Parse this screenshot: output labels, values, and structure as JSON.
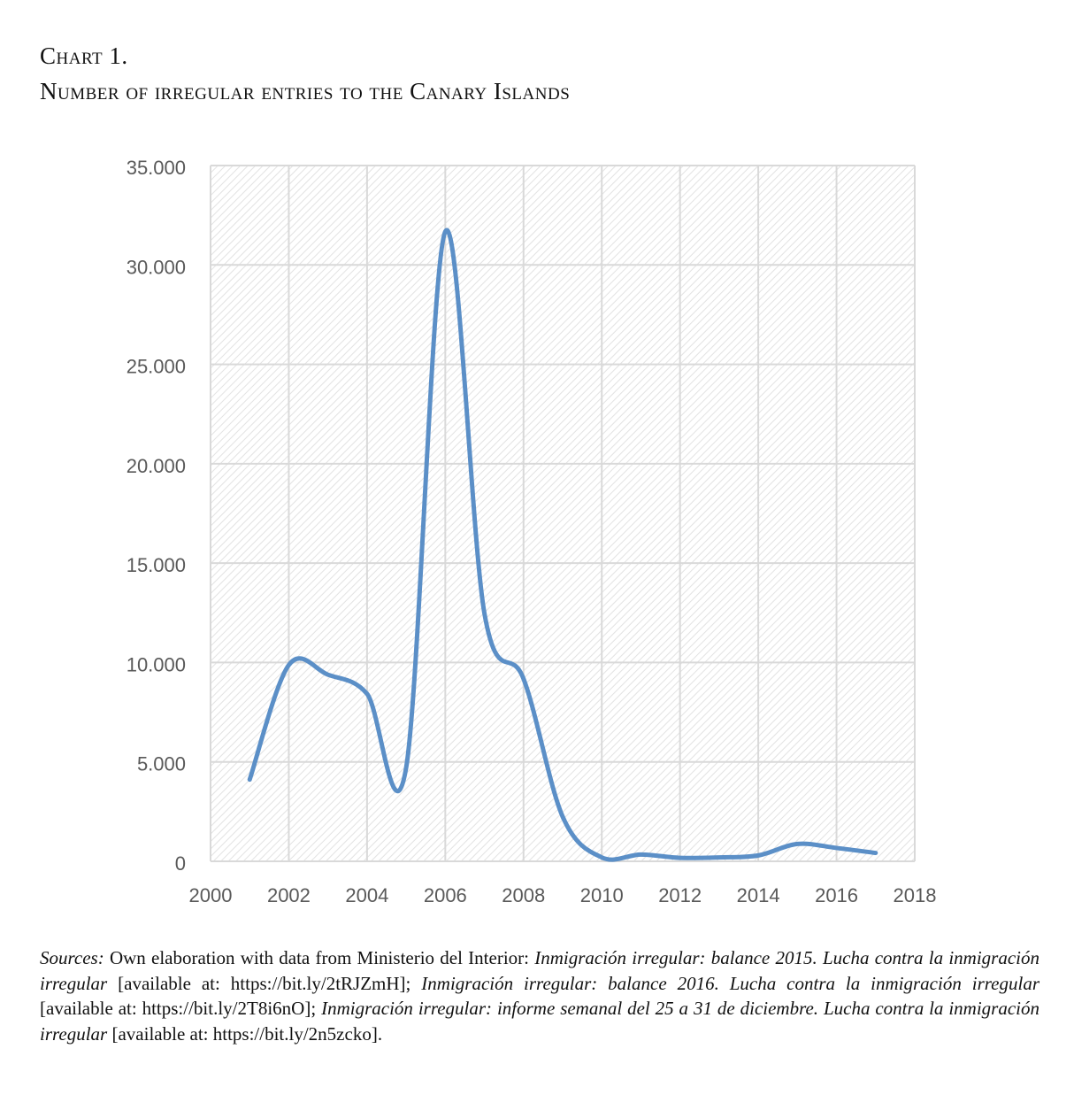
{
  "header": {
    "chart_number": "Chart 1.",
    "title": "Number of irregular entries to the Canary Islands"
  },
  "chart_data": {
    "type": "line",
    "smooth": true,
    "title": "Number of irregular entries to the Canary Islands",
    "xlabel": "",
    "ylabel": "",
    "xlim": [
      2000,
      2018
    ],
    "ylim": [
      0,
      35000
    ],
    "grid": true,
    "line_color": "#5b8fc7",
    "x_ticks": [
      "2000",
      "2002",
      "2004",
      "2006",
      "2008",
      "2010",
      "2012",
      "2014",
      "2016",
      "2018"
    ],
    "y_ticks": [
      "0",
      "5.000",
      "10.000",
      "15.000",
      "20.000",
      "25.000",
      "30.000",
      "35.000"
    ],
    "x": [
      2001,
      2002,
      2003,
      2004,
      2005,
      2006,
      2007,
      2008,
      2009,
      2010,
      2011,
      2012,
      2013,
      2014,
      2015,
      2016,
      2017
    ],
    "values": [
      4112,
      9875,
      9388,
      8426,
      4715,
      31678,
      12478,
      9181,
      2246,
      196,
      340,
      173,
      196,
      296,
      874,
      671,
      421
    ]
  },
  "sources": {
    "label": "Sources:",
    "p1": " Own elaboration with data from Ministerio del Interior: ",
    "i1": "Inmigración irregular: balance 2015. Lucha contra la inmigración irregular",
    "p2": " [available at: https://bit.ly/2tRJZmH]; ",
    "i2": "Inmigración irregular: balance 2016. Lucha contra la inmigración irregular",
    "p3": " [available at: https://bit.ly/2T8i6nO]; ",
    "i3": "Inmigración irregular: informe semanal del 25 a 31 de diciembre. Lucha contra la inmigración irregular",
    "p4": " [available at: https://bit.ly/2n5zcko]."
  }
}
